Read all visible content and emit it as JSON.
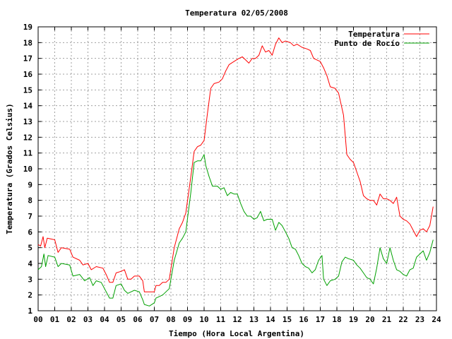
{
  "chart_data": {
    "type": "line",
    "title": "Temperatura 02/05/2008",
    "xlabel": "Tiempo (Hora Local Argentina)",
    "ylabel": "Temperatura (Grados Celsius)",
    "xlim": [
      0,
      24
    ],
    "ylim": [
      1,
      19
    ],
    "grid": true,
    "legend_position": "top-right",
    "x_ticks": [
      "00",
      "01",
      "02",
      "03",
      "04",
      "05",
      "06",
      "07",
      "08",
      "09",
      "10",
      "11",
      "12",
      "13",
      "14",
      "15",
      "16",
      "17",
      "18",
      "19",
      "20",
      "21",
      "22",
      "23",
      "24"
    ],
    "y_ticks": [
      "1",
      "2",
      "3",
      "4",
      "5",
      "6",
      "7",
      "8",
      "9",
      "10",
      "11",
      "12",
      "13",
      "14",
      "15",
      "16",
      "17",
      "18",
      "19"
    ],
    "series": [
      {
        "name": "Temperatura",
        "color": "#ff0000",
        "points": [
          [
            0,
            5.2
          ],
          [
            0.15,
            5.1
          ],
          [
            0.3,
            5.7
          ],
          [
            0.4,
            5.0
          ],
          [
            0.55,
            5.6
          ],
          [
            1.0,
            5.5
          ],
          [
            1.2,
            4.7
          ],
          [
            1.4,
            5.0
          ],
          [
            1.9,
            4.9
          ],
          [
            2.1,
            4.4
          ],
          [
            2.5,
            4.2
          ],
          [
            2.7,
            3.9
          ],
          [
            3.0,
            4.0
          ],
          [
            3.2,
            3.6
          ],
          [
            3.5,
            3.8
          ],
          [
            3.9,
            3.7
          ],
          [
            4.1,
            3.3
          ],
          [
            4.3,
            2.8
          ],
          [
            4.5,
            2.8
          ],
          [
            4.7,
            3.4
          ],
          [
            5.0,
            3.5
          ],
          [
            5.2,
            3.6
          ],
          [
            5.4,
            3.0
          ],
          [
            5.6,
            3.0
          ],
          [
            5.8,
            3.2
          ],
          [
            6.1,
            3.2
          ],
          [
            6.3,
            2.9
          ],
          [
            6.4,
            2.2
          ],
          [
            6.8,
            2.2
          ],
          [
            7.0,
            2.2
          ],
          [
            7.1,
            2.6
          ],
          [
            7.3,
            2.6
          ],
          [
            7.5,
            2.8
          ],
          [
            7.7,
            2.8
          ],
          [
            7.9,
            3.0
          ],
          [
            8.2,
            5.0
          ],
          [
            8.5,
            6.2
          ],
          [
            8.7,
            6.6
          ],
          [
            8.9,
            7.2
          ],
          [
            9.2,
            9.5
          ],
          [
            9.4,
            11.1
          ],
          [
            9.6,
            11.4
          ],
          [
            9.8,
            11.5
          ],
          [
            10.0,
            11.8
          ],
          [
            10.2,
            13.5
          ],
          [
            10.4,
            15.1
          ],
          [
            10.6,
            15.4
          ],
          [
            10.9,
            15.5
          ],
          [
            11.1,
            15.7
          ],
          [
            11.3,
            16.2
          ],
          [
            11.5,
            16.6
          ],
          [
            11.8,
            16.8
          ],
          [
            12.1,
            17.0
          ],
          [
            12.3,
            17.1
          ],
          [
            12.5,
            16.9
          ],
          [
            12.7,
            16.7
          ],
          [
            12.9,
            17.0
          ],
          [
            13.1,
            17.0
          ],
          [
            13.3,
            17.2
          ],
          [
            13.5,
            17.8
          ],
          [
            13.7,
            17.4
          ],
          [
            13.9,
            17.5
          ],
          [
            14.1,
            17.2
          ],
          [
            14.3,
            17.9
          ],
          [
            14.5,
            18.3
          ],
          [
            14.7,
            18.0
          ],
          [
            14.9,
            18.1
          ],
          [
            15.2,
            18.0
          ],
          [
            15.4,
            17.8
          ],
          [
            15.6,
            17.9
          ],
          [
            15.9,
            17.7
          ],
          [
            16.2,
            17.6
          ],
          [
            16.4,
            17.5
          ],
          [
            16.6,
            17.0
          ],
          [
            16.8,
            16.9
          ],
          [
            17.0,
            16.8
          ],
          [
            17.2,
            16.4
          ],
          [
            17.4,
            15.9
          ],
          [
            17.6,
            15.2
          ],
          [
            17.9,
            15.1
          ],
          [
            18.1,
            14.8
          ],
          [
            18.4,
            13.4
          ],
          [
            18.6,
            10.9
          ],
          [
            18.8,
            10.6
          ],
          [
            19.0,
            10.4
          ],
          [
            19.2,
            9.8
          ],
          [
            19.4,
            9.2
          ],
          [
            19.6,
            8.3
          ],
          [
            19.8,
            8.1
          ],
          [
            20.0,
            8.0
          ],
          [
            20.2,
            8.0
          ],
          [
            20.4,
            7.7
          ],
          [
            20.6,
            8.4
          ],
          [
            20.8,
            8.1
          ],
          [
            21.0,
            8.1
          ],
          [
            21.2,
            8.0
          ],
          [
            21.4,
            7.8
          ],
          [
            21.6,
            8.2
          ],
          [
            21.8,
            7.0
          ],
          [
            22.0,
            6.8
          ],
          [
            22.2,
            6.7
          ],
          [
            22.4,
            6.5
          ],
          [
            22.6,
            6.1
          ],
          [
            22.8,
            5.7
          ],
          [
            23.0,
            6.1
          ],
          [
            23.2,
            6.2
          ],
          [
            23.4,
            6.0
          ],
          [
            23.6,
            6.4
          ],
          [
            23.8,
            7.6
          ]
        ]
      },
      {
        "name": "Punto de Rocío",
        "color": "#00a000",
        "points": [
          [
            0,
            3.6
          ],
          [
            0.2,
            3.8
          ],
          [
            0.35,
            4.6
          ],
          [
            0.45,
            3.8
          ],
          [
            0.6,
            4.5
          ],
          [
            1.0,
            4.4
          ],
          [
            1.2,
            3.8
          ],
          [
            1.4,
            4.0
          ],
          [
            1.9,
            3.9
          ],
          [
            2.1,
            3.2
          ],
          [
            2.5,
            3.3
          ],
          [
            2.8,
            2.9
          ],
          [
            3.1,
            3.1
          ],
          [
            3.3,
            2.6
          ],
          [
            3.5,
            2.9
          ],
          [
            3.8,
            2.8
          ],
          [
            4.0,
            2.4
          ],
          [
            4.3,
            1.8
          ],
          [
            4.5,
            1.8
          ],
          [
            4.7,
            2.6
          ],
          [
            5.0,
            2.7
          ],
          [
            5.2,
            2.3
          ],
          [
            5.4,
            2.1
          ],
          [
            5.6,
            2.2
          ],
          [
            5.8,
            2.3
          ],
          [
            6.1,
            2.2
          ],
          [
            6.3,
            1.7
          ],
          [
            6.4,
            1.4
          ],
          [
            6.7,
            1.3
          ],
          [
            7.0,
            1.5
          ],
          [
            7.1,
            1.8
          ],
          [
            7.3,
            1.9
          ],
          [
            7.5,
            2.0
          ],
          [
            7.7,
            2.2
          ],
          [
            7.9,
            2.4
          ],
          [
            8.2,
            4.2
          ],
          [
            8.5,
            5.3
          ],
          [
            8.7,
            5.6
          ],
          [
            8.9,
            6.0
          ],
          [
            9.2,
            8.5
          ],
          [
            9.4,
            10.4
          ],
          [
            9.6,
            10.5
          ],
          [
            9.8,
            10.5
          ],
          [
            10.0,
            10.9
          ],
          [
            10.1,
            10.2
          ],
          [
            10.3,
            9.5
          ],
          [
            10.5,
            8.9
          ],
          [
            10.8,
            8.9
          ],
          [
            11.0,
            8.7
          ],
          [
            11.2,
            8.8
          ],
          [
            11.4,
            8.3
          ],
          [
            11.6,
            8.5
          ],
          [
            11.8,
            8.4
          ],
          [
            12.0,
            8.4
          ],
          [
            12.2,
            7.8
          ],
          [
            12.4,
            7.3
          ],
          [
            12.6,
            7.0
          ],
          [
            12.8,
            7.0
          ],
          [
            13.0,
            6.8
          ],
          [
            13.2,
            6.9
          ],
          [
            13.4,
            7.3
          ],
          [
            13.6,
            6.7
          ],
          [
            13.8,
            6.8
          ],
          [
            14.1,
            6.8
          ],
          [
            14.3,
            6.1
          ],
          [
            14.5,
            6.6
          ],
          [
            14.7,
            6.4
          ],
          [
            14.9,
            6.0
          ],
          [
            15.1,
            5.6
          ],
          [
            15.3,
            5.0
          ],
          [
            15.5,
            4.9
          ],
          [
            15.7,
            4.5
          ],
          [
            15.9,
            4.0
          ],
          [
            16.1,
            3.8
          ],
          [
            16.3,
            3.7
          ],
          [
            16.5,
            3.4
          ],
          [
            16.7,
            3.6
          ],
          [
            16.9,
            4.2
          ],
          [
            17.1,
            4.5
          ],
          [
            17.2,
            3.0
          ],
          [
            17.4,
            2.6
          ],
          [
            17.6,
            2.9
          ],
          [
            17.9,
            3.0
          ],
          [
            18.1,
            3.2
          ],
          [
            18.3,
            4.1
          ],
          [
            18.5,
            4.4
          ],
          [
            18.7,
            4.3
          ],
          [
            19.0,
            4.2
          ],
          [
            19.2,
            3.9
          ],
          [
            19.4,
            3.7
          ],
          [
            19.6,
            3.4
          ],
          [
            19.8,
            3.1
          ],
          [
            20.0,
            3.0
          ],
          [
            20.2,
            2.7
          ],
          [
            20.4,
            3.7
          ],
          [
            20.6,
            5.0
          ],
          [
            20.8,
            4.3
          ],
          [
            21.0,
            4.0
          ],
          [
            21.2,
            5.0
          ],
          [
            21.4,
            4.2
          ],
          [
            21.6,
            3.6
          ],
          [
            21.8,
            3.5
          ],
          [
            22.0,
            3.3
          ],
          [
            22.2,
            3.2
          ],
          [
            22.4,
            3.6
          ],
          [
            22.6,
            3.7
          ],
          [
            22.8,
            4.4
          ],
          [
            23.0,
            4.6
          ],
          [
            23.2,
            4.8
          ],
          [
            23.4,
            4.2
          ],
          [
            23.6,
            4.7
          ],
          [
            23.8,
            5.5
          ]
        ]
      }
    ]
  }
}
